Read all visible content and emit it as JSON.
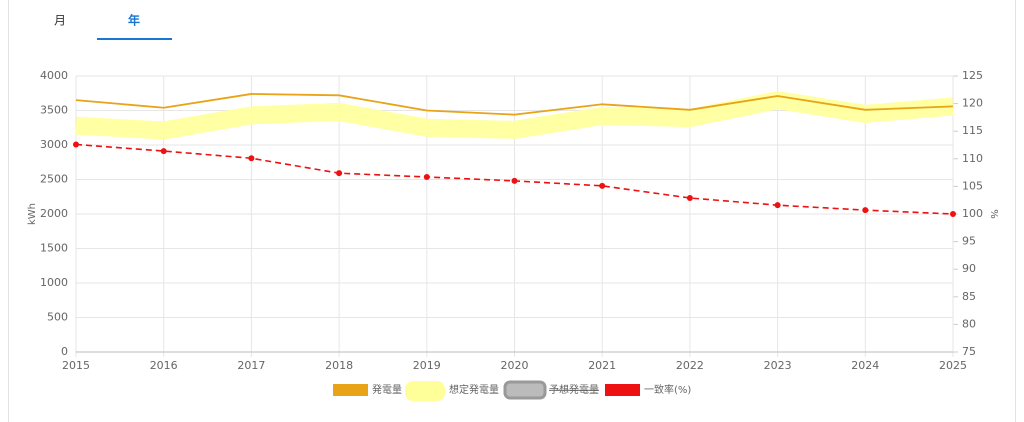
{
  "tabs": {
    "items": [
      "月",
      "年"
    ],
    "active": 1
  },
  "chart_data": {
    "type": "line",
    "categories": [
      "2015",
      "2016",
      "2017",
      "2018",
      "2019",
      "2020",
      "2021",
      "2022",
      "2023",
      "2024",
      "2025"
    ],
    "ylabel": "kWh",
    "y2label": "%",
    "ylim": [
      0,
      4000
    ],
    "yticks": [
      0,
      500,
      1000,
      1500,
      2000,
      2500,
      3000,
      3500,
      4000
    ],
    "y2lim": [
      75,
      125
    ],
    "y2ticks": [
      75,
      80,
      85,
      90,
      95,
      100,
      105,
      110,
      115,
      120,
      125
    ],
    "grid": true,
    "series": [
      {
        "name": "発電量",
        "color": "#e8a317",
        "values": [
          3650,
          3540,
          3740,
          3720,
          3500,
          3440,
          3590,
          3510,
          3710,
          3510,
          3560
        ]
      },
      {
        "name": "想定発電量",
        "color": "#ffff99",
        "style": "band",
        "values": [
          3280,
          3210,
          3430,
          3480,
          3250,
          3220,
          3420,
          3390,
          3650,
          3450,
          3560
        ]
      },
      {
        "name": "予想発電量",
        "color": "#999999",
        "hidden": true
      },
      {
        "name": "一致率(%)",
        "color": "#ee1111",
        "axis": "y2",
        "dashed": true,
        "markers": true,
        "values": [
          112.6,
          111.4,
          110.1,
          107.4,
          106.7,
          106.0,
          105.1,
          102.9,
          101.6,
          100.7,
          100
        ]
      }
    ]
  }
}
